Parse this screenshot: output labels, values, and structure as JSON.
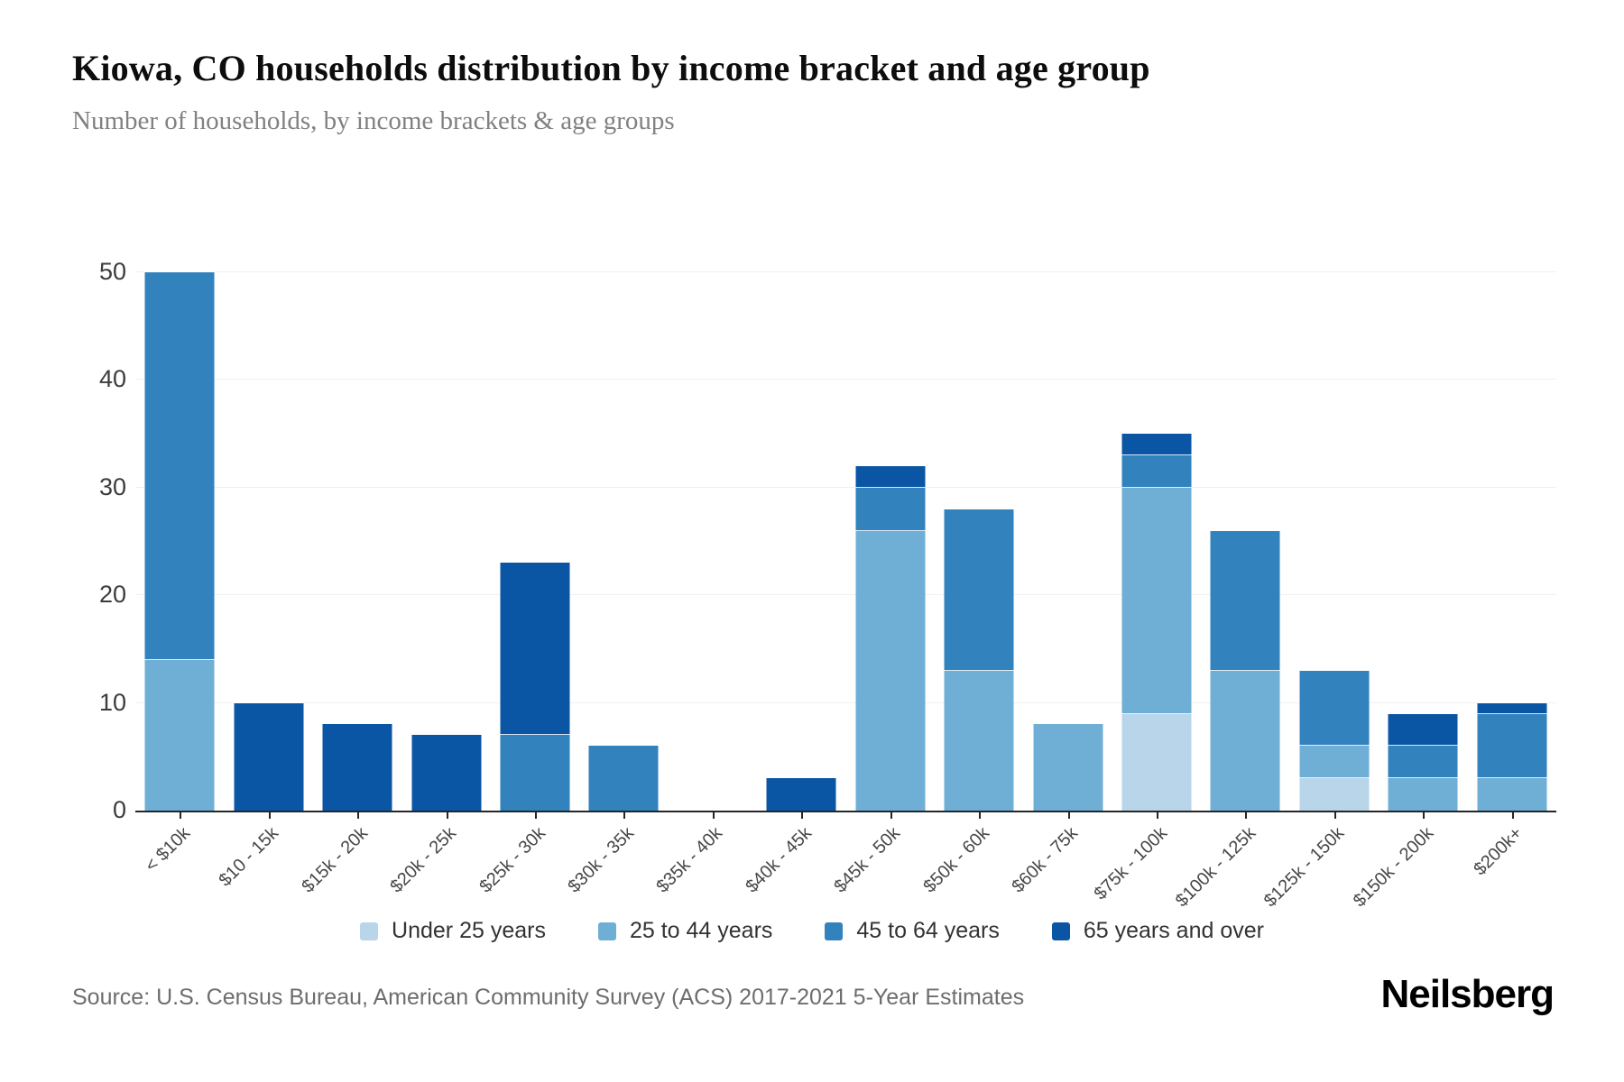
{
  "header": {
    "title": "Kiowa, CO households distribution by income bracket and age group",
    "subtitle": "Number of households, by income brackets & age groups"
  },
  "footer": {
    "source": "Source: U.S. Census Bureau, American Community Survey (ACS) 2017-2021 5-Year Estimates",
    "brand": "Neilsberg"
  },
  "chart_data": {
    "type": "bar",
    "stacked": true,
    "title": "Kiowa, CO households distribution by income bracket and age group",
    "xlabel": "",
    "ylabel": "",
    "ylim": [
      0,
      50
    ],
    "yticks": [
      0,
      10,
      20,
      30,
      40,
      50
    ],
    "grid": "horizontal",
    "legend_position": "bottom",
    "categories": [
      "< $10k",
      "$10 - 15k",
      "$15k - 20k",
      "$20k - 25k",
      "$25k - 30k",
      "$30k - 35k",
      "$35k - 40k",
      "$40k - 45k",
      "$45k - 50k",
      "$50k - 60k",
      "$60k - 75k",
      "$75k - 100k",
      "$100k - 125k",
      "$125k - 150k",
      "$150k - 200k",
      "$200k+"
    ],
    "series": [
      {
        "name": "Under 25 years",
        "color": "#b9d5ea",
        "values": [
          0,
          0,
          0,
          0,
          0,
          0,
          0,
          0,
          0,
          0,
          0,
          9,
          0,
          3,
          0,
          0
        ]
      },
      {
        "name": "25 to 44 years",
        "color": "#6fafd6",
        "values": [
          14,
          0,
          0,
          0,
          0,
          0,
          0,
          0,
          26,
          13,
          8,
          21,
          13,
          3,
          3,
          3
        ]
      },
      {
        "name": "45 to 64 years",
        "color": "#3282bd",
        "values": [
          36,
          0,
          0,
          0,
          7,
          6,
          0,
          0,
          4,
          15,
          0,
          3,
          13,
          7,
          3,
          6
        ]
      },
      {
        "name": "65 years and over",
        "color": "#0b55a5",
        "values": [
          0,
          10,
          8,
          7,
          16,
          0,
          0,
          3,
          2,
          0,
          0,
          2,
          0,
          0,
          3,
          1
        ]
      }
    ],
    "totals": [
      50,
      10,
      8,
      7,
      23,
      6,
      0,
      3,
      32,
      28,
      8,
      35,
      26,
      13,
      9,
      10
    ]
  }
}
